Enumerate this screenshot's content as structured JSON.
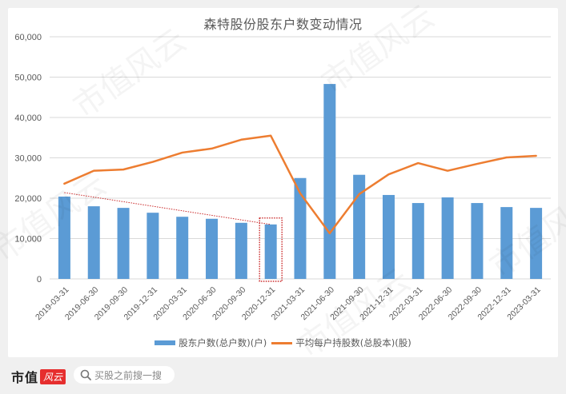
{
  "chart_data": {
    "type": "bar+line",
    "title": "森特股份股东户数变动情况",
    "categories": [
      "2019-03-31",
      "2019-06-30",
      "2019-09-30",
      "2019-12-31",
      "2020-03-31",
      "2020-06-30",
      "2020-09-30",
      "2020-12-31",
      "2021-03-31",
      "2021-06-30",
      "2021-09-30",
      "2021-12-31",
      "2022-03-31",
      "2022-06-30",
      "2022-09-30",
      "2022-12-31",
      "2023-03-31"
    ],
    "series": [
      {
        "name": "股东户数(总户数)(户)",
        "type": "bar",
        "color": "#5b9bd5",
        "values": [
          20400,
          18000,
          17600,
          16400,
          15400,
          14900,
          13900,
          13500,
          25000,
          48300,
          25800,
          20800,
          18800,
          20200,
          18800,
          17800,
          17600
        ]
      },
      {
        "name": "平均每户持股数(总股本)(股)",
        "type": "line",
        "color": "#ed7d31",
        "values": [
          23600,
          26800,
          27100,
          29000,
          31300,
          32300,
          34500,
          35500,
          21200,
          11300,
          21000,
          25900,
          28700,
          26800,
          28500,
          30100,
          30500
        ]
      }
    ],
    "xlabel": "",
    "ylabel": "",
    "ylim": [
      0,
      60000
    ],
    "yticks": [
      "0",
      "10,000",
      "20,000",
      "30,000",
      "40,000",
      "50,000",
      "60,000"
    ],
    "grid": true,
    "legend_position": "bottom",
    "annotations": [
      {
        "type": "dotted-trendline",
        "color": "#c00000",
        "from": "2019-03-31",
        "to": "2020-12-31"
      },
      {
        "type": "dotted-highlight-box",
        "color": "#c00000",
        "target": "2020-12-31"
      }
    ]
  },
  "legend": {
    "bar_label": "股东户数(总户数)(户)",
    "line_label": "平均每户持股数(总股本)(股)"
  },
  "footer": {
    "brand": "市值",
    "brand_badge": "风云",
    "search_placeholder": "买股之前搜一搜"
  },
  "watermark": "市值风云"
}
